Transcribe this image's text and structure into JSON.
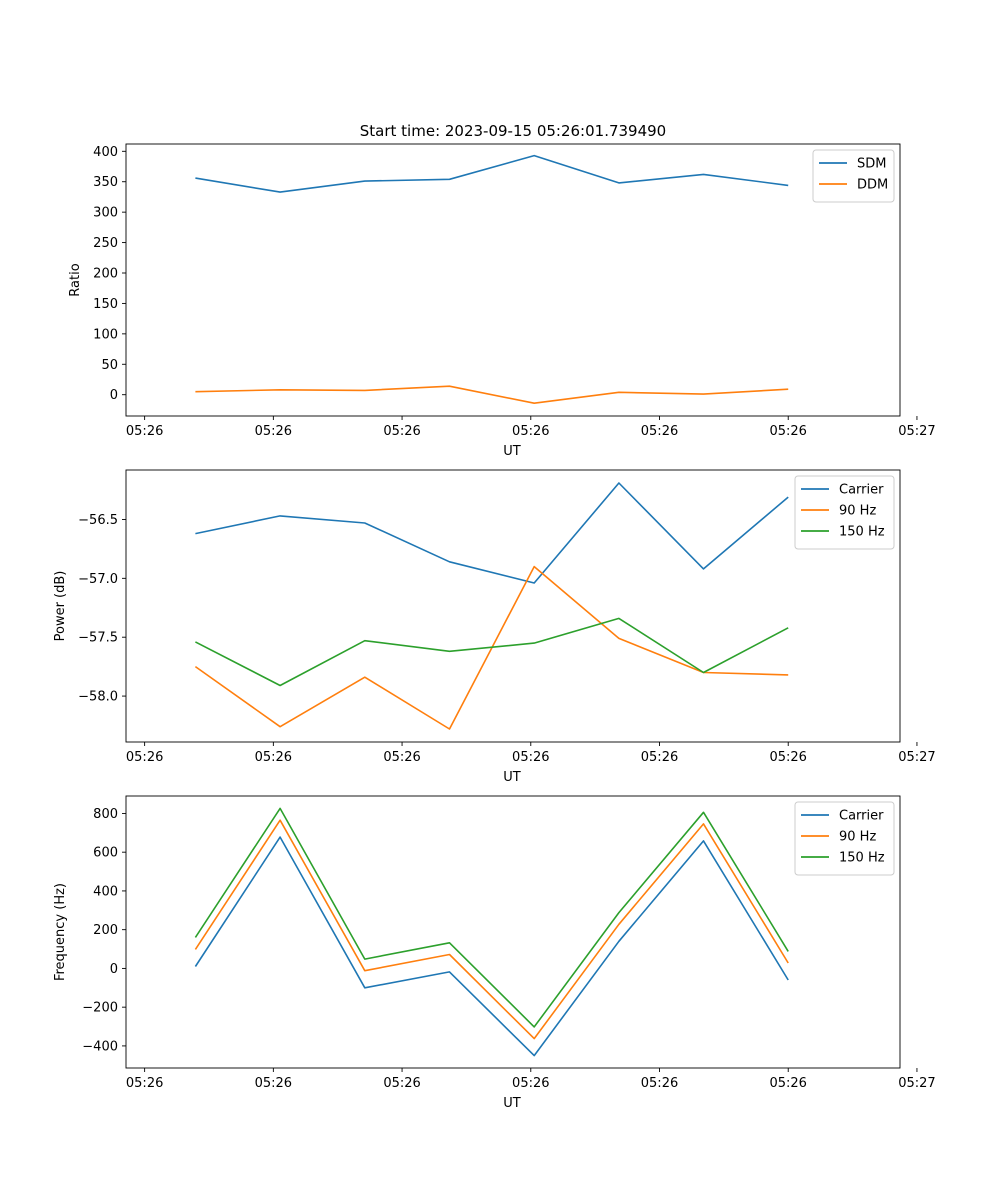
{
  "title": "Start time: 2023-09-15 05:26:01.739490",
  "chart_data": [
    {
      "type": "line",
      "title": "Start time: 2023-09-15 05:26:01.739490",
      "xlabel": "UT",
      "ylabel": "Ratio",
      "x": [
        1,
        2,
        3,
        4,
        5,
        6,
        7,
        8
      ],
      "xlim": [
        0.18,
        9.32
      ],
      "ylim": [
        -35,
        412
      ],
      "xticks": [
        0.4,
        1.92,
        3.44,
        4.96,
        6.48,
        8.0,
        9.52
      ],
      "xtick_labels": [
        "05:26",
        "05:26",
        "05:26",
        "05:26",
        "05:26",
        "05:26",
        "05:27"
      ],
      "yticks": [
        0,
        50,
        100,
        150,
        200,
        250,
        300,
        350,
        400
      ],
      "ytick_labels": [
        "0",
        "50",
        "100",
        "150",
        "200",
        "250",
        "300",
        "350",
        "400"
      ],
      "legend": "top-right",
      "series": [
        {
          "name": "SDM",
          "color": "#1f77b4",
          "values": [
            356,
            333,
            351,
            354,
            393,
            348,
            362,
            344
          ]
        },
        {
          "name": "DDM",
          "color": "#ff7f0e",
          "values": [
            5,
            8,
            7,
            14,
            -14,
            4,
            1,
            9
          ]
        }
      ]
    },
    {
      "type": "line",
      "xlabel": "UT",
      "ylabel": "Power (dB)",
      "x": [
        1,
        2,
        3,
        4,
        5,
        6,
        7,
        8
      ],
      "xlim": [
        0.18,
        9.32
      ],
      "ylim": [
        -58.39,
        -56.08
      ],
      "xticks": [
        0.4,
        1.92,
        3.44,
        4.96,
        6.48,
        8.0,
        9.52
      ],
      "xtick_labels": [
        "05:26",
        "05:26",
        "05:26",
        "05:26",
        "05:26",
        "05:26",
        "05:27"
      ],
      "yticks": [
        -58.0,
        -57.5,
        -57.0,
        -56.5
      ],
      "ytick_labels": [
        "−58.0",
        "−57.5",
        "−57.0",
        "−56.5"
      ],
      "legend": "top-right",
      "series": [
        {
          "name": "Carrier",
          "color": "#1f77b4",
          "values": [
            -56.62,
            -56.47,
            -56.53,
            -56.86,
            -57.04,
            -56.19,
            -56.92,
            -56.31
          ]
        },
        {
          "name": "90 Hz",
          "color": "#ff7f0e",
          "values": [
            -57.75,
            -58.26,
            -57.84,
            -58.28,
            -56.9,
            -57.51,
            -57.8,
            -57.82
          ]
        },
        {
          "name": "150 Hz",
          "color": "#2ca02c",
          "values": [
            -57.54,
            -57.91,
            -57.53,
            -57.62,
            -57.55,
            -57.34,
            -57.8,
            -57.42
          ]
        }
      ]
    },
    {
      "type": "line",
      "xlabel": "UT",
      "ylabel": "Frequency (Hz)",
      "x": [
        1,
        2,
        3,
        4,
        5,
        6,
        7,
        8
      ],
      "xlim": [
        0.18,
        9.32
      ],
      "ylim": [
        -514,
        890
      ],
      "xticks": [
        0.4,
        1.92,
        3.44,
        4.96,
        6.48,
        8.0,
        9.52
      ],
      "xtick_labels": [
        "05:26",
        "05:26",
        "05:26",
        "05:26",
        "05:26",
        "05:26",
        "05:27"
      ],
      "yticks": [
        -400,
        -200,
        0,
        200,
        400,
        600,
        800
      ],
      "ytick_labels": [
        "−400",
        "−200",
        "0",
        "200",
        "400",
        "600",
        "800"
      ],
      "legend": "top-right",
      "series": [
        {
          "name": "Carrier",
          "color": "#1f77b4",
          "values": [
            10,
            678,
            -100,
            -18,
            -450,
            140,
            658,
            -60
          ]
        },
        {
          "name": "90 Hz",
          "color": "#ff7f0e",
          "values": [
            98,
            765,
            -12,
            72,
            -362,
            228,
            746,
            28
          ]
        },
        {
          "name": "150 Hz",
          "color": "#2ca02c",
          "values": [
            160,
            826,
            48,
            132,
            -302,
            288,
            806,
            88
          ]
        }
      ]
    }
  ]
}
